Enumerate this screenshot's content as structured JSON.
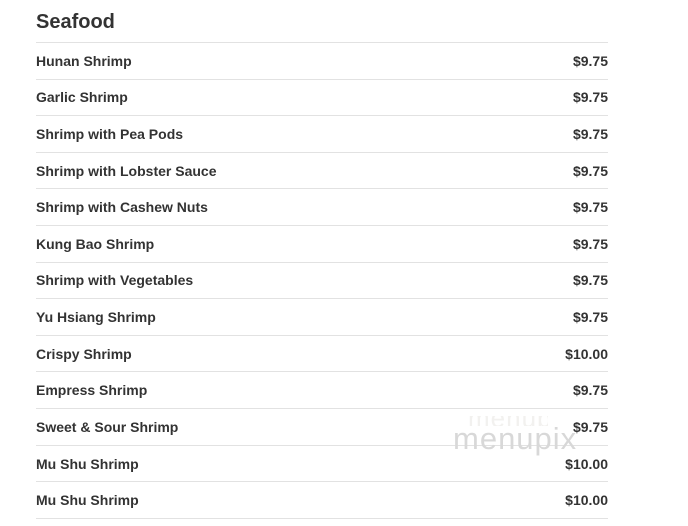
{
  "menu": {
    "section_title": "Seafood",
    "items": [
      {
        "name": "Hunan Shrimp",
        "price": "$9.75"
      },
      {
        "name": "Garlic Shrimp",
        "price": "$9.75"
      },
      {
        "name": "Shrimp with Pea Pods",
        "price": "$9.75"
      },
      {
        "name": "Shrimp with Lobster Sauce",
        "price": "$9.75"
      },
      {
        "name": "Shrimp with Cashew Nuts",
        "price": "$9.75"
      },
      {
        "name": "Kung Bao Shrimp",
        "price": "$9.75"
      },
      {
        "name": "Shrimp with Vegetables",
        "price": "$9.75"
      },
      {
        "name": "Yu Hsiang Shrimp",
        "price": "$9.75"
      },
      {
        "name": "Crispy Shrimp",
        "price": "$10.00"
      },
      {
        "name": "Empress Shrimp",
        "price": "$9.75"
      },
      {
        "name": "Sweet & Sour Shrimp",
        "price": "$9.75"
      },
      {
        "name": "Mu Shu Shrimp",
        "price": "$10.00"
      },
      {
        "name": "Mu Shu Shrimp",
        "price": "$10.00"
      }
    ]
  },
  "watermark": {
    "text": "menupix"
  },
  "colors": {
    "text": "#333333",
    "divider": "#e2e2e2",
    "watermark": "#d8d8d8",
    "background": "#ffffff"
  }
}
